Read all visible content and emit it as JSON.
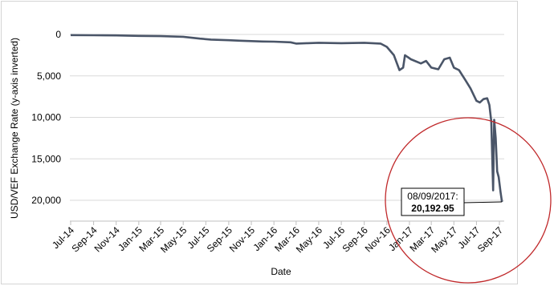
{
  "chart_data": {
    "type": "line",
    "xlabel": "Date",
    "ylabel": "USD/VEF Exchange Rate (y-axis inverted)",
    "y_inverted": true,
    "ylim": [
      0,
      22500
    ],
    "y_ticks": [
      0,
      5000,
      10000,
      15000,
      20000
    ],
    "y_tick_labels": [
      "0",
      "5,000",
      "10,000",
      "15,000",
      "20,000"
    ],
    "x_ticks": [
      "2014-07-01",
      "2014-09-01",
      "2014-11-01",
      "2015-01-01",
      "2015-03-01",
      "2015-05-01",
      "2015-07-01",
      "2015-09-01",
      "2015-11-01",
      "2016-01-01",
      "2016-03-01",
      "2016-05-01",
      "2016-07-01",
      "2016-09-01",
      "2016-11-01",
      "2017-01-01",
      "2017-03-01",
      "2017-05-01",
      "2017-07-01",
      "2017-09-01"
    ],
    "x_tick_labels": [
      "Jul-14",
      "Sep-14",
      "Nov-14",
      "Jan-15",
      "Mar-15",
      "May-15",
      "Jul-15",
      "Sep-15",
      "Nov-15",
      "Jan-16",
      "Mar-16",
      "May-16",
      "Jul-16",
      "Sep-16",
      "Nov-16",
      "Jan-17",
      "Mar-17",
      "May-17",
      "Jul-17",
      "Sep-17"
    ],
    "grid": "horizontal",
    "line_color": "#4a5568",
    "series": [
      {
        "points": [
          [
            "2014-07-01",
            80
          ],
          [
            "2014-09-01",
            100
          ],
          [
            "2014-11-01",
            120
          ],
          [
            "2015-01-01",
            170
          ],
          [
            "2015-03-01",
            200
          ],
          [
            "2015-05-01",
            280
          ],
          [
            "2015-06-15",
            500
          ],
          [
            "2015-07-15",
            620
          ],
          [
            "2015-09-01",
            700
          ],
          [
            "2015-10-01",
            750
          ],
          [
            "2015-11-01",
            800
          ],
          [
            "2015-12-01",
            850
          ],
          [
            "2016-01-01",
            870
          ],
          [
            "2016-02-15",
            950
          ],
          [
            "2016-03-01",
            1100
          ],
          [
            "2016-04-01",
            1050
          ],
          [
            "2016-05-01",
            1000
          ],
          [
            "2016-07-01",
            1050
          ],
          [
            "2016-09-01",
            1000
          ],
          [
            "2016-10-15",
            1100
          ],
          [
            "2016-11-01",
            1500
          ],
          [
            "2016-11-20",
            2500
          ],
          [
            "2016-12-05",
            4300
          ],
          [
            "2016-12-15",
            4000
          ],
          [
            "2016-12-20",
            2500
          ],
          [
            "2017-01-05",
            3000
          ],
          [
            "2017-02-01",
            3500
          ],
          [
            "2017-02-15",
            3200
          ],
          [
            "2017-03-01",
            4000
          ],
          [
            "2017-03-20",
            4200
          ],
          [
            "2017-04-05",
            3000
          ],
          [
            "2017-04-20",
            2800
          ],
          [
            "2017-05-01",
            4000
          ],
          [
            "2017-05-15",
            4300
          ],
          [
            "2017-06-01",
            5500
          ],
          [
            "2017-06-15",
            6500
          ],
          [
            "2017-07-01",
            8000
          ],
          [
            "2017-07-10",
            8200
          ],
          [
            "2017-07-20",
            7800
          ],
          [
            "2017-07-30",
            7700
          ],
          [
            "2017-08-05",
            8500
          ],
          [
            "2017-08-10",
            10500
          ],
          [
            "2017-08-15",
            18800
          ],
          [
            "2017-08-18",
            10300
          ],
          [
            "2017-08-22",
            12500
          ],
          [
            "2017-08-26",
            16500
          ],
          [
            "2017-08-30",
            17200
          ],
          [
            "2017-09-04",
            19000
          ],
          [
            "2017-09-08",
            20192.95
          ]
        ]
      }
    ],
    "annotation": {
      "date_text": "08/09/2017:",
      "value_text": "20,192.95",
      "target": [
        "2017-09-08",
        20192.95
      ]
    },
    "highlight_circle_color": "#c0292b"
  }
}
